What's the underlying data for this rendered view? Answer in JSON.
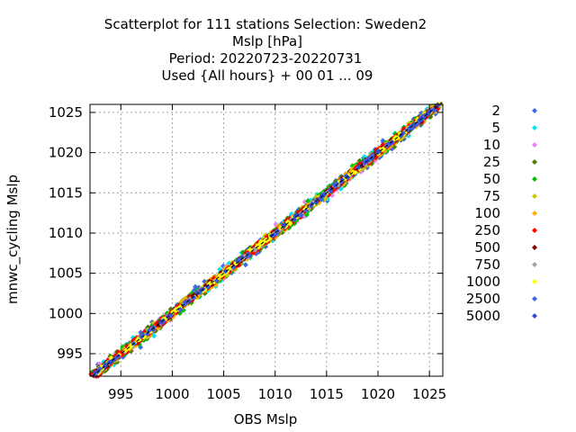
{
  "chart_data": {
    "type": "scatter",
    "title_lines": [
      "Scatterplot for  111 stations Selection: Sweden2",
      "Mslp [hPa]",
      "Period: 20220723-20220731",
      "Used {All hours} + 00 01 ... 09"
    ],
    "xlabel": "OBS Mslp",
    "ylabel": "mnwc_cycling Mslp",
    "xlim": [
      992,
      1026.3
    ],
    "ylim": [
      992.2,
      1026
    ],
    "xticks": [
      995,
      1000,
      1005,
      1010,
      1015,
      1020,
      1025
    ],
    "yticks": [
      995,
      1000,
      1005,
      1010,
      1015,
      1020,
      1025
    ],
    "grid": true,
    "legend_position": "right",
    "legend": [
      {
        "label": "2",
        "color": "#4169e1"
      },
      {
        "label": "5",
        "color": "#00e5ee"
      },
      {
        "label": "10",
        "color": "#ee82ee"
      },
      {
        "label": "25",
        "color": "#4e7a00"
      },
      {
        "label": "50",
        "color": "#00c000"
      },
      {
        "label": "75",
        "color": "#c8c800"
      },
      {
        "label": "100",
        "color": "#ffb000"
      },
      {
        "label": "250",
        "color": "#ff0000"
      },
      {
        "label": "500",
        "color": "#800000"
      },
      {
        "label": "750",
        "color": "#a0a0a0"
      },
      {
        "label": "1000",
        "color": "#ffff00"
      },
      {
        "label": "2500",
        "color": "#4060e0"
      },
      {
        "label": "5000",
        "color": "#3050d0"
      }
    ],
    "density_bands": [
      {
        "class": "2",
        "color": "#4169e1",
        "halfwidth": 1.3,
        "count": 260
      },
      {
        "class": "5",
        "color": "#00e5ee",
        "halfwidth": 1.15,
        "count": 240
      },
      {
        "class": "10",
        "color": "#ee82ee",
        "halfwidth": 1.0,
        "count": 160
      },
      {
        "class": "25",
        "color": "#4e7a00",
        "halfwidth": 0.95,
        "count": 260
      },
      {
        "class": "50",
        "color": "#00c000",
        "halfwidth": 0.85,
        "count": 380
      },
      {
        "class": "75",
        "color": "#c8c800",
        "halfwidth": 0.7,
        "count": 320
      },
      {
        "class": "100",
        "color": "#ffb000",
        "halfwidth": 0.6,
        "count": 300
      },
      {
        "class": "250",
        "color": "#ff0000",
        "halfwidth": 0.5,
        "count": 520
      },
      {
        "class": "500",
        "color": "#800000",
        "halfwidth": 0.3,
        "count": 200
      },
      {
        "class": "750",
        "color": "#a0a0a0",
        "halfwidth": 0.2,
        "count": 90
      },
      {
        "class": "1000",
        "color": "#ffff00",
        "halfwidth": 0.22,
        "count": 150
      },
      {
        "class": "2500",
        "color": "#4060e0",
        "halfwidth": 0.25,
        "count": 80
      },
      {
        "class": "5000",
        "color": "#3050d0",
        "halfwidth": 0.2,
        "count": 40
      }
    ],
    "points": [
      {
        "x": 1012.5,
        "y": 1012.2,
        "class": "2500"
      },
      {
        "x": 1013.0,
        "y": 1012.8,
        "class": "2500"
      },
      {
        "x": 1013.5,
        "y": 1013.4,
        "class": "2500"
      },
      {
        "x": 1014.0,
        "y": 1013.8,
        "class": "5000"
      },
      {
        "x": 1014.5,
        "y": 1014.2,
        "class": "2500"
      },
      {
        "x": 1019.5,
        "y": 1019.7,
        "class": "2500"
      },
      {
        "x": 1020.0,
        "y": 1020.2,
        "class": "5000"
      },
      {
        "x": 1021.0,
        "y": 1021.1,
        "class": "2500"
      },
      {
        "x": 1007.5,
        "y": 1007.2,
        "class": "2500"
      },
      {
        "x": 1006.5,
        "y": 1006.6,
        "class": "2500"
      },
      {
        "x": 1024.5,
        "y": 1024.6,
        "class": "2500"
      },
      {
        "x": 1025.5,
        "y": 1025.3,
        "class": "2500"
      }
    ]
  }
}
